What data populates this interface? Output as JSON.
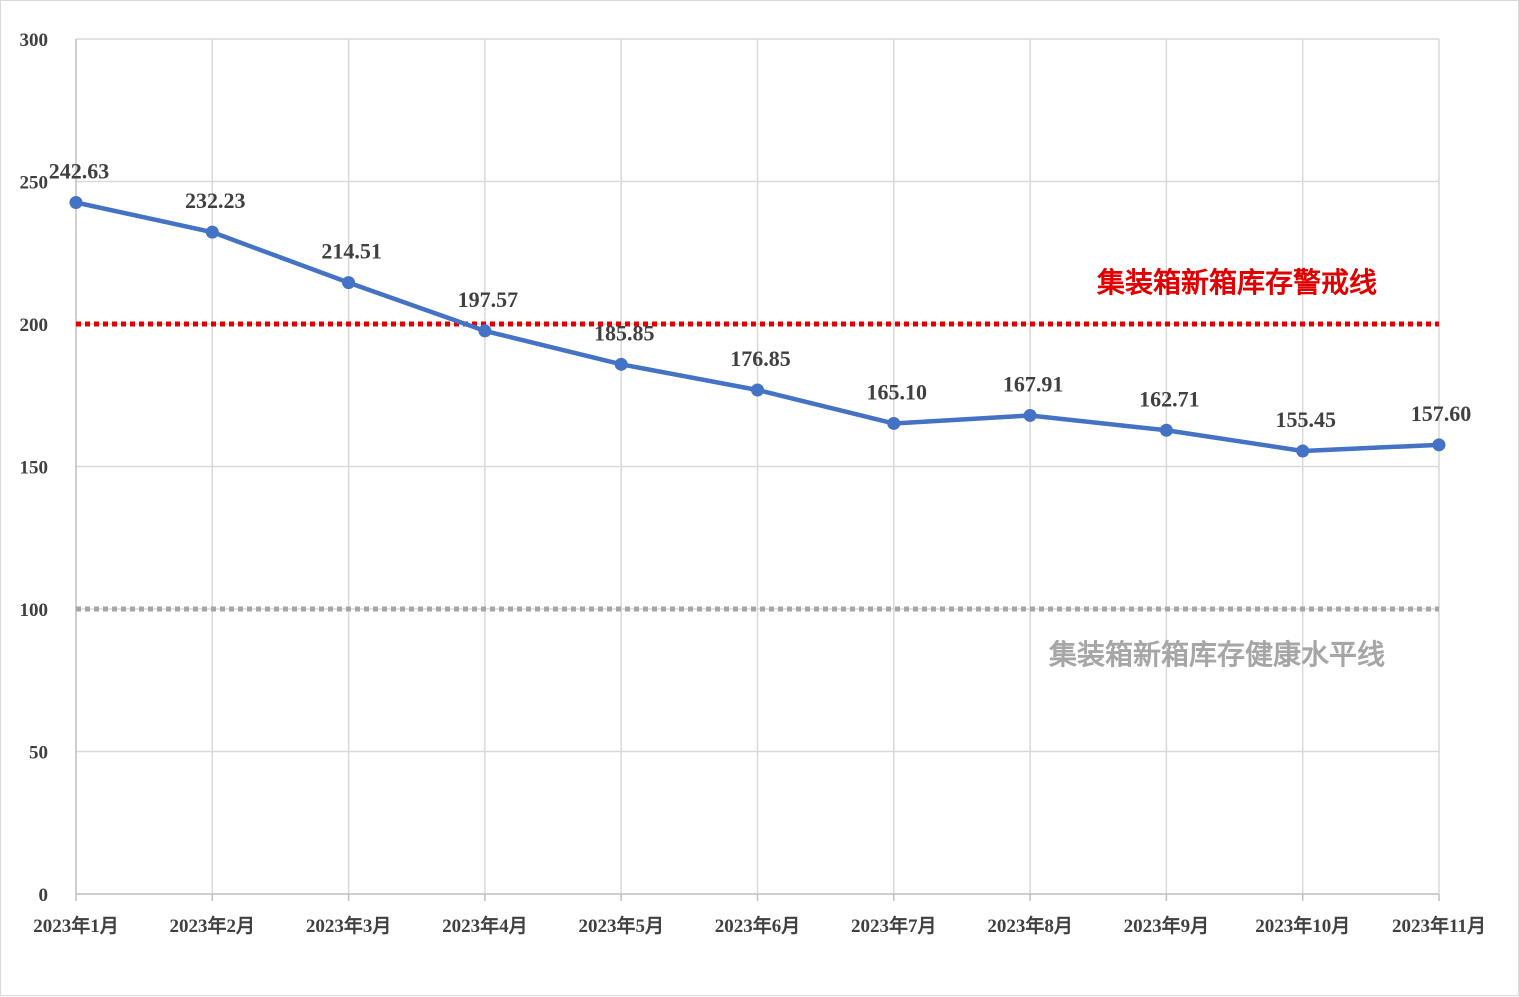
{
  "chart_data": {
    "type": "line",
    "categories": [
      "2023年1月",
      "2023年2月",
      "2023年3月",
      "2023年4月",
      "2023年5月",
      "2023年6月",
      "2023年7月",
      "2023年8月",
      "2023年9月",
      "2023年10月",
      "2023年11月"
    ],
    "series": [
      {
        "values": [
          242.63,
          232.23,
          214.51,
          197.57,
          185.85,
          176.85,
          165.1,
          167.91,
          162.71,
          155.45,
          157.6
        ],
        "labels": [
          "242.63",
          "232.23",
          "214.51",
          "197.57",
          "185.85",
          "176.85",
          "165.10",
          "167.91",
          "162.71",
          "155.45",
          "157.60"
        ],
        "color": "#4472c4"
      }
    ],
    "ylim": [
      0,
      300
    ],
    "yticks": [
      "0",
      "50",
      "100",
      "150",
      "200",
      "250",
      "300"
    ],
    "grid": true,
    "reference_lines": [
      {
        "label": "集装箱新箱库存警戒线",
        "value": 200,
        "color": "#e00000"
      },
      {
        "label": "集装箱新箱库存健康水平线",
        "value": 100,
        "color": "#a6a6a6"
      }
    ]
  }
}
